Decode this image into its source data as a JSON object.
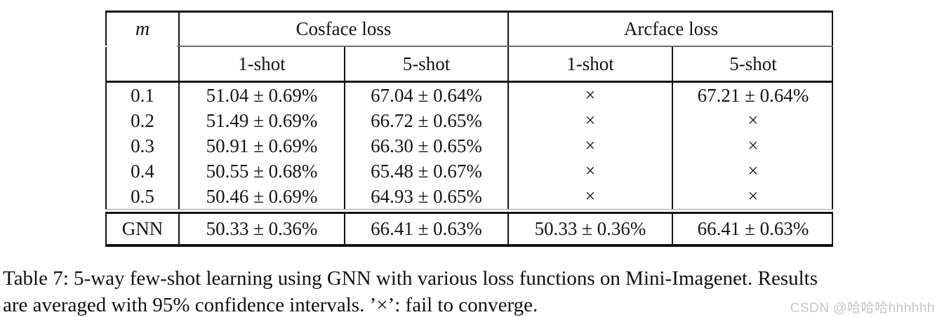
{
  "table": {
    "corner_label": "m",
    "groups": [
      {
        "label": "Cosface loss",
        "sub": [
          "1-shot",
          "5-shot"
        ]
      },
      {
        "label": "Arcface loss",
        "sub": [
          "1-shot",
          "5-shot"
        ]
      }
    ],
    "rows": [
      {
        "m": "0.1",
        "cells": [
          "51.04 ± 0.69%",
          "67.04 ± 0.64%",
          "×",
          "67.21 ± 0.64%"
        ]
      },
      {
        "m": "0.2",
        "cells": [
          "51.49 ± 0.69%",
          "66.72 ± 0.65%",
          "×",
          "×"
        ]
      },
      {
        "m": "0.3",
        "cells": [
          "50.91 ± 0.69%",
          "66.30 ± 0.65%",
          "×",
          "×"
        ]
      },
      {
        "m": "0.4",
        "cells": [
          "50.55 ± 0.68%",
          "65.48 ± 0.67%",
          "×",
          "×"
        ]
      },
      {
        "m": "0.5",
        "cells": [
          "50.46 ± 0.69%",
          "64.93 ± 0.65%",
          "×",
          "×"
        ]
      }
    ],
    "footer_row": {
      "m": "GNN",
      "cells": [
        "50.33 ± 0.36%",
        "66.41 ± 0.63%",
        "50.33 ± 0.36%",
        "66.41 ± 0.63%"
      ]
    }
  },
  "caption": {
    "line1": "Table 7: 5-way few-shot learning using GNN with various loss functions on Mini-Imagenet. Results",
    "line2": "are averaged with 95% confidence intervals. ’×’: fail to converge."
  },
  "watermark": {
    "text": "CSDN @哈哈哈hhhhhh"
  },
  "colors": {
    "ink": "#141414",
    "light_rule": "#9a9a9a",
    "watermark": "#c6c6c6"
  }
}
